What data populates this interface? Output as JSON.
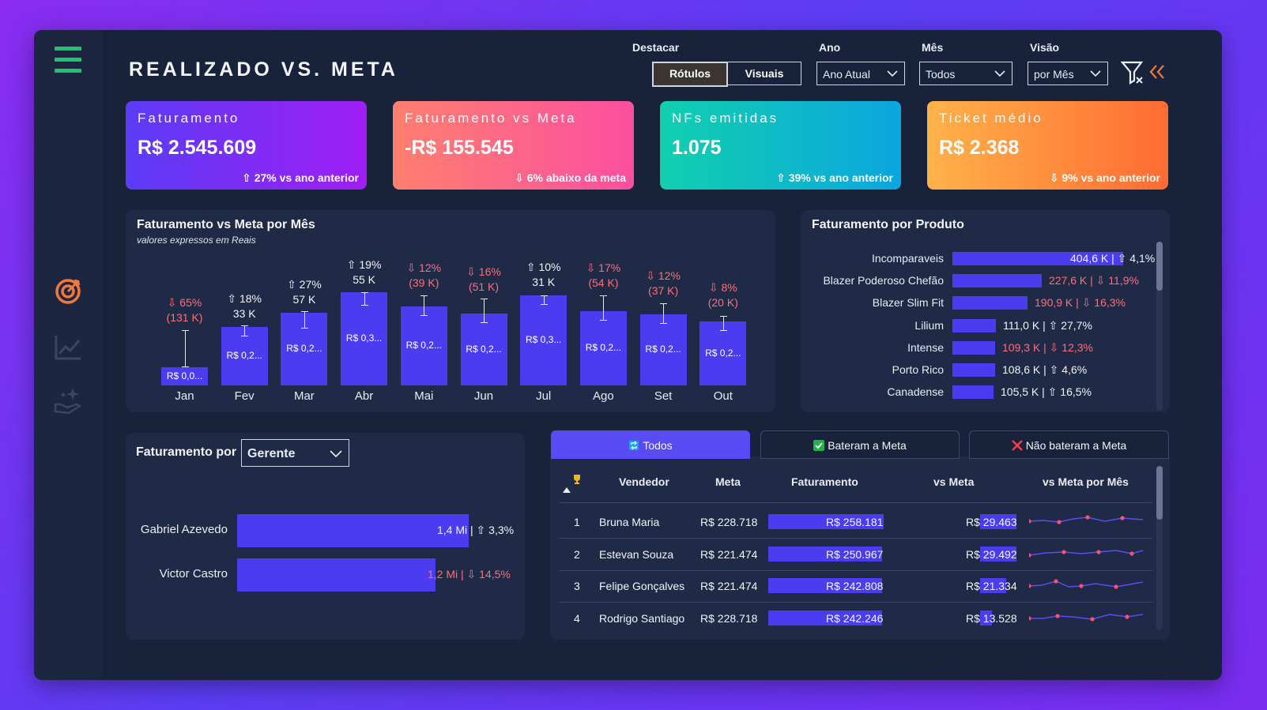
{
  "title": "REALIZADO VS. META",
  "filters": {
    "destacar_label": "Destacar",
    "destacar_options": [
      "Rótulos",
      "Visuais"
    ],
    "ano_label": "Ano",
    "ano_value": "Ano Atual",
    "mes_label": "Mês",
    "mes_value": "Todos",
    "visao_label": "Visão",
    "visao_value": "por Mês"
  },
  "icons": [
    "menu-icon",
    "target-icon",
    "line-chart-icon",
    "hand-sparkle-icon",
    "filter-icon",
    "collapse-icon"
  ],
  "colors": {
    "accent": "#4b3cf2",
    "positive": "#f2f4f8",
    "negative": "#ff6f7a",
    "menu": "#1ec46b"
  },
  "kpis": [
    {
      "title": "Faturamento",
      "value": "R$ 2.545.609",
      "delta": "⇧ 27% vs ano anterior"
    },
    {
      "title": "Faturamento vs Meta",
      "value": "-R$ 155.545",
      "delta": "⇩ 6% abaixo da meta"
    },
    {
      "title": "NFs emitidas",
      "value": "1.075",
      "delta": "⇧ 39% vs ano anterior"
    },
    {
      "title": "Ticket médio",
      "value": "R$ 2.368",
      "delta": "⇩ 9% vs ano anterior"
    }
  ],
  "monthly": {
    "title": "Faturamento vs Meta por Mês",
    "subtitle": "valores expressos em Reais",
    "months": [
      "Jan",
      "Fev",
      "Mar",
      "Abr",
      "Mai",
      "Jun",
      "Jul",
      "Ago",
      "Set",
      "Out"
    ],
    "bar_labels": [
      "R$ 0,0...",
      "R$ 0,2...",
      "R$ 0,2...",
      "R$ 0,3...",
      "R$ 0,2...",
      "R$ 0,2...",
      "R$ 0,3...",
      "R$ 0,2...",
      "R$ 0,2...",
      "R$ 0,2..."
    ],
    "delta_pct": [
      "⇩ 65%",
      "⇧ 18%",
      "⇧ 27%",
      "⇧ 19%",
      "⇩ 12%",
      "⇩ 16%",
      "⇧ 10%",
      "⇩ 17%",
      "⇩ 12%",
      "⇩ 8%"
    ],
    "delta_abs": [
      "(131 K)",
      "33 K",
      "57 K",
      "55 K",
      "(39 K)",
      "(51 K)",
      "31 K",
      "(54 K)",
      "(37 K)",
      "(20 K)"
    ],
    "direction": [
      "down",
      "up",
      "up",
      "up",
      "down",
      "down",
      "up",
      "down",
      "down",
      "down"
    ]
  },
  "products": {
    "title": "Faturamento por Produto",
    "names": [
      "Incomparaveis",
      "Blazer Poderoso Chefão",
      "Blazer Slim Fit",
      "Lilium",
      "Intense",
      "Porto Rico",
      "Canadense"
    ],
    "values": [
      404.6,
      227.6,
      190.9,
      111.0,
      109.3,
      108.6,
      105.5
    ],
    "labels": [
      "404,6 K | ⇧ 4,1%",
      "227,6 K | ⇩ 11,9%",
      "190,9 K | ⇩ 16,3%",
      "111,0 K | ⇧ 27,7%",
      "109,3 K | ⇩ 12,3%",
      "108,6 K | ⇧ 4,6%",
      "105,5 K | ⇧ 16,5%"
    ],
    "direction": [
      "up",
      "down",
      "down",
      "up",
      "down",
      "up",
      "up"
    ]
  },
  "manager": {
    "label": "Faturamento por",
    "select_value": "Gerente",
    "names": [
      "Gabriel Azevedo",
      "Victor Castro"
    ],
    "values": [
      1.4,
      1.2
    ],
    "labels": [
      "1,4 Mi | ⇧ 3,3%",
      "1,2 Mi | ⇩ 14,5%"
    ],
    "direction": [
      "up",
      "down"
    ]
  },
  "sellers": {
    "tabs": [
      "Todos",
      "Bateram a Meta",
      "Não bateram a Meta"
    ],
    "headers": [
      "Vendedor",
      "Meta",
      "Faturamento",
      "vs Meta",
      "vs Meta por Mês"
    ],
    "rows": [
      {
        "rank": "1",
        "name": "Bruna Maria",
        "meta": "R$ 228.718",
        "fat": "R$ 258.181",
        "vs": "R$ 29.463"
      },
      {
        "rank": "2",
        "name": "Estevan Souza",
        "meta": "R$ 221.474",
        "fat": "R$ 250.967",
        "vs": "R$ 29.492"
      },
      {
        "rank": "3",
        "name": "Felipe Gonçalves",
        "meta": "R$ 221.474",
        "fat": "R$ 242.808",
        "vs": "R$ 21.334"
      },
      {
        "rank": "4",
        "name": "Rodrigo Santiago",
        "meta": "R$ 228.718",
        "fat": "R$ 242.246",
        "vs": "R$ 13.528"
      }
    ]
  }
}
